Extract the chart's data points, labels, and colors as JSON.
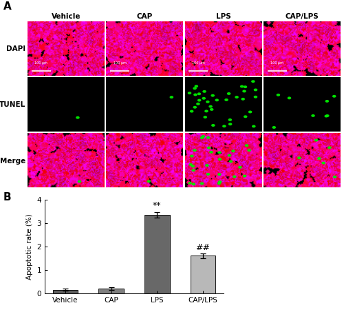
{
  "categories": [
    "Vehicle",
    "CAP",
    "LPS",
    "CAP/LPS"
  ],
  "values": [
    0.15,
    0.2,
    3.35,
    1.6
  ],
  "errors": [
    0.05,
    0.07,
    0.13,
    0.1
  ],
  "bar_colors": [
    "#606060",
    "#808080",
    "#686868",
    "#b8b8b8"
  ],
  "bar_edgecolors": [
    "#111111",
    "#111111",
    "#111111",
    "#111111"
  ],
  "ylabel": "Apoptotic rate (%)",
  "ylim": [
    0,
    4.0
  ],
  "yticks": [
    0,
    1,
    2,
    3,
    4
  ],
  "panel_b_label": "B",
  "panel_a_label": "A",
  "background_color": "#ffffff",
  "fig_width": 5.0,
  "fig_height": 4.53,
  "dpi": 100,
  "row_labels": [
    "DAPI",
    "TUNEL",
    "Merge"
  ],
  "col_labels": [
    "Vehicle",
    "CAP",
    "LPS",
    "CAP/LPS"
  ],
  "tunel_counts": [
    1,
    1,
    35,
    8
  ],
  "merge_counts": [
    1,
    1,
    28,
    6
  ]
}
